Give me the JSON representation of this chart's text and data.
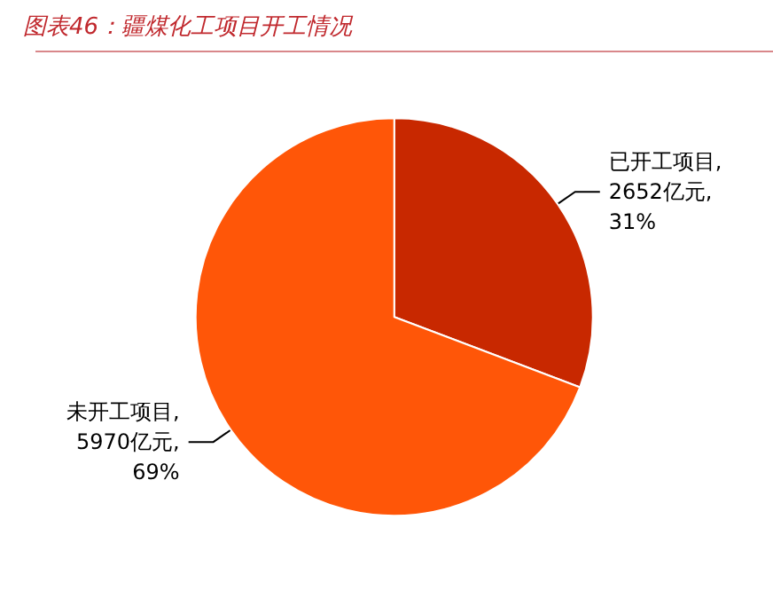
{
  "chart_data": {
    "type": "pie",
    "title": "图表46：疆煤化工项目开工情况",
    "categories": [
      "已开工项目",
      "未开工项目"
    ],
    "values": [
      2652,
      5970
    ],
    "colors": [
      "#c82800",
      "#ff5608"
    ],
    "value_labels": [
      ",\n2652亿元,\n31%",
      ",\n5970亿元,\n69%"
    ],
    "legend": false
  }
}
